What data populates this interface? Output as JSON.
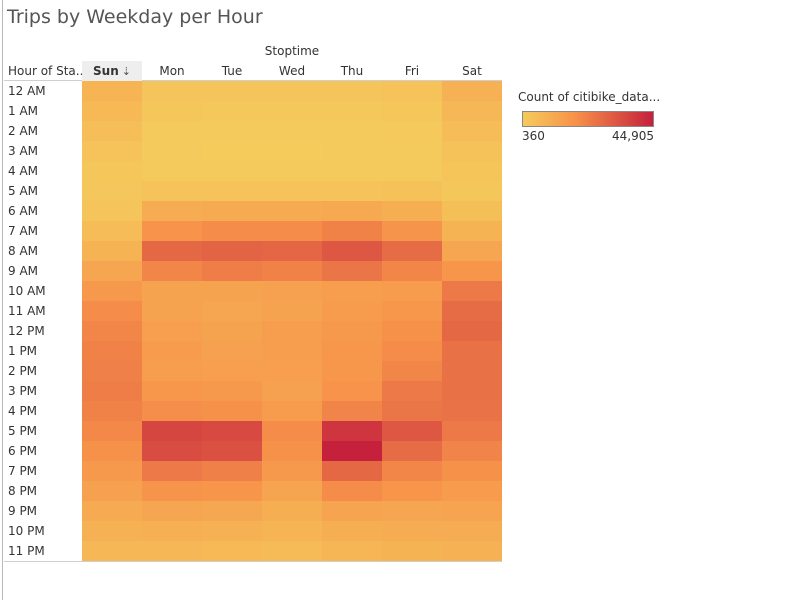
{
  "title": "Trips by Weekday per Hour",
  "column_header": "Stoptime",
  "row_header": "Hour of Sta..",
  "colors": {
    "low": "#f5cb5c",
    "mid": "#f7924a",
    "high": "#c5203c"
  },
  "legend": {
    "title": "Count of citibike_data...",
    "min_label": "360",
    "max_label": "44,905",
    "min": 360,
    "max": 44905
  },
  "sort_icon": "sort-descending-icon",
  "chart_data": {
    "type": "heatmap",
    "title": "Trips by Weekday per Hour",
    "xlabel": "Stoptime",
    "ylabel": "Hour of Sta..",
    "x": [
      "Sun",
      "Mon",
      "Tue",
      "Wed",
      "Thu",
      "Fri",
      "Sat"
    ],
    "y": [
      "12 AM",
      "1 AM",
      "2 AM",
      "3 AM",
      "4 AM",
      "5 AM",
      "6 AM",
      "7 AM",
      "8 AM",
      "9 AM",
      "10 AM",
      "11 AM",
      "12 PM",
      "1 PM",
      "2 PM",
      "3 PM",
      "4 PM",
      "5 PM",
      "6 PM",
      "7 PM",
      "8 PM",
      "9 PM",
      "10 PM",
      "11 PM"
    ],
    "sorted_column": "Sun",
    "value_range": [
      360,
      44905
    ],
    "values": [
      [
        7500,
        2500,
        2500,
        2500,
        2500,
        3000,
        8500
      ],
      [
        6000,
        1500,
        1200,
        1200,
        1200,
        1500,
        6500
      ],
      [
        4500,
        800,
        700,
        700,
        800,
        1000,
        5000
      ],
      [
        3000,
        600,
        500,
        500,
        600,
        700,
        3500
      ],
      [
        2000,
        700,
        600,
        600,
        700,
        800,
        2300
      ],
      [
        1800,
        3000,
        3000,
        3000,
        3000,
        3200,
        2000
      ],
      [
        2500,
        10000,
        10500,
        10500,
        11000,
        9500,
        4000
      ],
      [
        5000,
        18000,
        19500,
        19500,
        22000,
        17500,
        8000
      ],
      [
        8000,
        28000,
        29000,
        28500,
        32000,
        27000,
        12000
      ],
      [
        12000,
        21000,
        23000,
        22000,
        25000,
        21000,
        17000
      ],
      [
        16000,
        13000,
        13000,
        13500,
        14500,
        15000,
        24000
      ],
      [
        19500,
        13000,
        12000,
        13000,
        15000,
        16500,
        27000
      ],
      [
        21000,
        14000,
        13000,
        14500,
        16000,
        18500,
        28000
      ],
      [
        22000,
        15000,
        13500,
        14500,
        16500,
        19500,
        26000
      ],
      [
        22500,
        14500,
        14000,
        14000,
        16500,
        21000,
        26000
      ],
      [
        23000,
        16500,
        16000,
        13500,
        18000,
        24000,
        26000
      ],
      [
        22000,
        19000,
        18500,
        15500,
        21500,
        25000,
        25500
      ],
      [
        20500,
        36000,
        35000,
        19500,
        40000,
        32000,
        24000
      ],
      [
        18500,
        34500,
        33500,
        18500,
        44905,
        27000,
        21500
      ],
      [
        16000,
        24000,
        22500,
        16000,
        28000,
        21000,
        18500
      ],
      [
        13500,
        17500,
        17000,
        12500,
        19500,
        17000,
        15500
      ],
      [
        10500,
        12000,
        11500,
        9500,
        12500,
        12000,
        12500
      ],
      [
        8500,
        9000,
        8500,
        7500,
        9500,
        10000,
        10000
      ],
      [
        6500,
        6500,
        6000,
        5500,
        7000,
        8000,
        8500
      ]
    ]
  }
}
